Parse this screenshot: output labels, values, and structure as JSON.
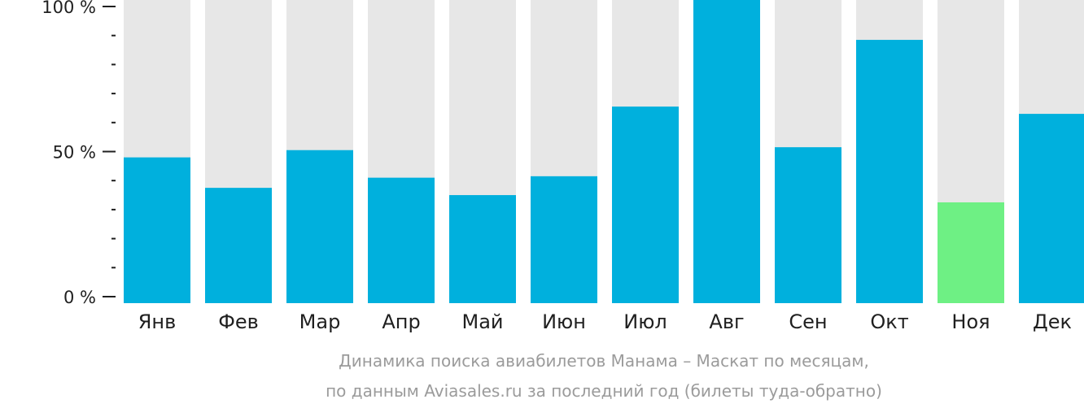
{
  "chart_data": {
    "type": "bar",
    "categories": [
      "Янв",
      "Фев",
      "Мар",
      "Апр",
      "Май",
      "Июн",
      "Июл",
      "Авг",
      "Сен",
      "Окт",
      "Ноя",
      "Дек"
    ],
    "values": [
      48,
      37.5,
      50.5,
      41,
      35,
      41.5,
      65.5,
      100,
      51.5,
      88.5,
      32.5,
      63
    ],
    "ylim": [
      0,
      100
    ],
    "yticks": [
      {
        "value": 100,
        "label": "100 %"
      },
      {
        "value": 50,
        "label": "50 %"
      },
      {
        "value": 0,
        "label": "0 %"
      }
    ],
    "minor_ticks_per_interval": 5,
    "highlight_index": 10,
    "colors": {
      "bar": "#00b0dd",
      "highlight": "#6ef084",
      "background_bar": "#e7e7e7",
      "axis": "#1f1f1f",
      "caption": "#9b9b9b"
    },
    "caption_lines": [
      "Динамика поиска авиабилетов Манама – Маскат по месяцам,",
      "по данным Aviasales.ru за последний год (билеты туда-обратно)"
    ],
    "grid": false,
    "legend": "none"
  }
}
